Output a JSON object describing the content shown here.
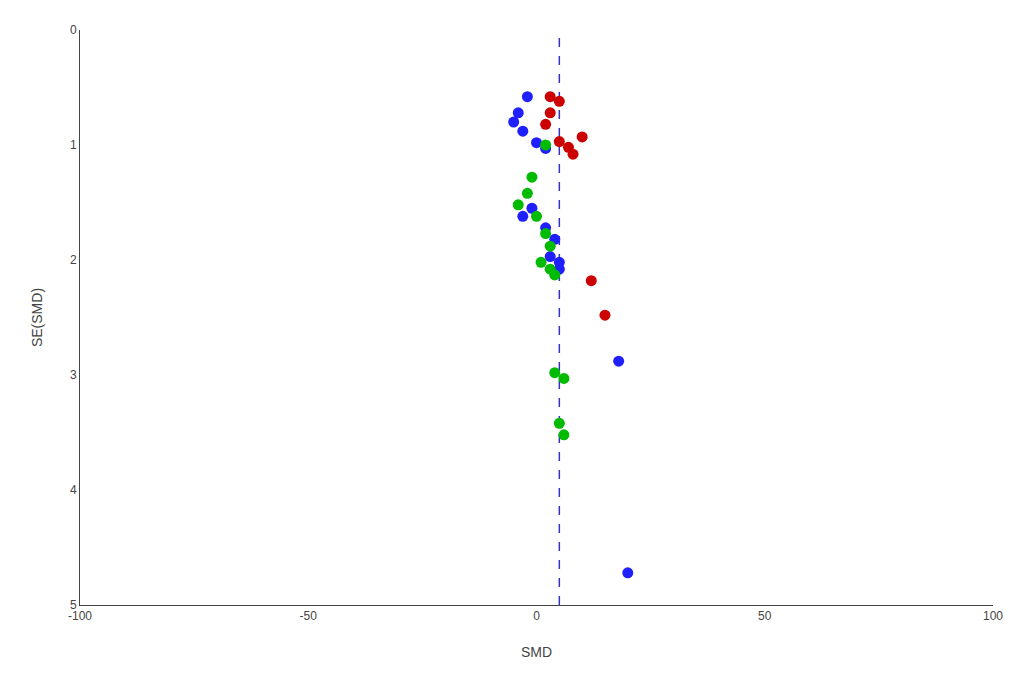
{
  "chart_data": {
    "type": "scatter",
    "xlabel": "SMD",
    "ylabel": "SE(SMD)",
    "xlim": [
      -100,
      100
    ],
    "ylim": [
      5,
      0
    ],
    "xticks": [
      -100,
      -50,
      0,
      50,
      100
    ],
    "yticks": [
      0,
      1,
      2,
      3,
      4,
      5
    ],
    "grid": false,
    "marker": "circle",
    "series": [
      {
        "color": "#2020ff",
        "x": [
          -2,
          -4,
          -5,
          -3,
          0,
          2,
          -1,
          -3,
          2,
          4,
          3,
          5,
          5,
          18,
          20
        ],
        "values": [
          0.58,
          0.72,
          0.8,
          0.88,
          0.98,
          1.03,
          1.55,
          1.62,
          1.72,
          1.82,
          1.97,
          2.02,
          2.08,
          2.88,
          4.72
        ]
      },
      {
        "color": "#00bb00",
        "x": [
          2,
          -1,
          -2,
          -4,
          0,
          2,
          3,
          1,
          3,
          4,
          4,
          6,
          5,
          6
        ],
        "values": [
          1.0,
          1.28,
          1.42,
          1.52,
          1.62,
          1.77,
          1.88,
          2.02,
          2.08,
          2.13,
          2.98,
          3.03,
          3.42,
          3.52
        ]
      },
      {
        "color": "#cc0000",
        "x": [
          3,
          5,
          3,
          2,
          5,
          7,
          8,
          10,
          12,
          15
        ],
        "values": [
          0.58,
          0.62,
          0.72,
          0.82,
          0.97,
          1.02,
          1.08,
          0.93,
          2.18,
          2.48
        ]
      }
    ],
    "reference_lines": [
      {
        "x": 5,
        "color": "#3333cc",
        "line_style": "dashed"
      }
    ]
  }
}
